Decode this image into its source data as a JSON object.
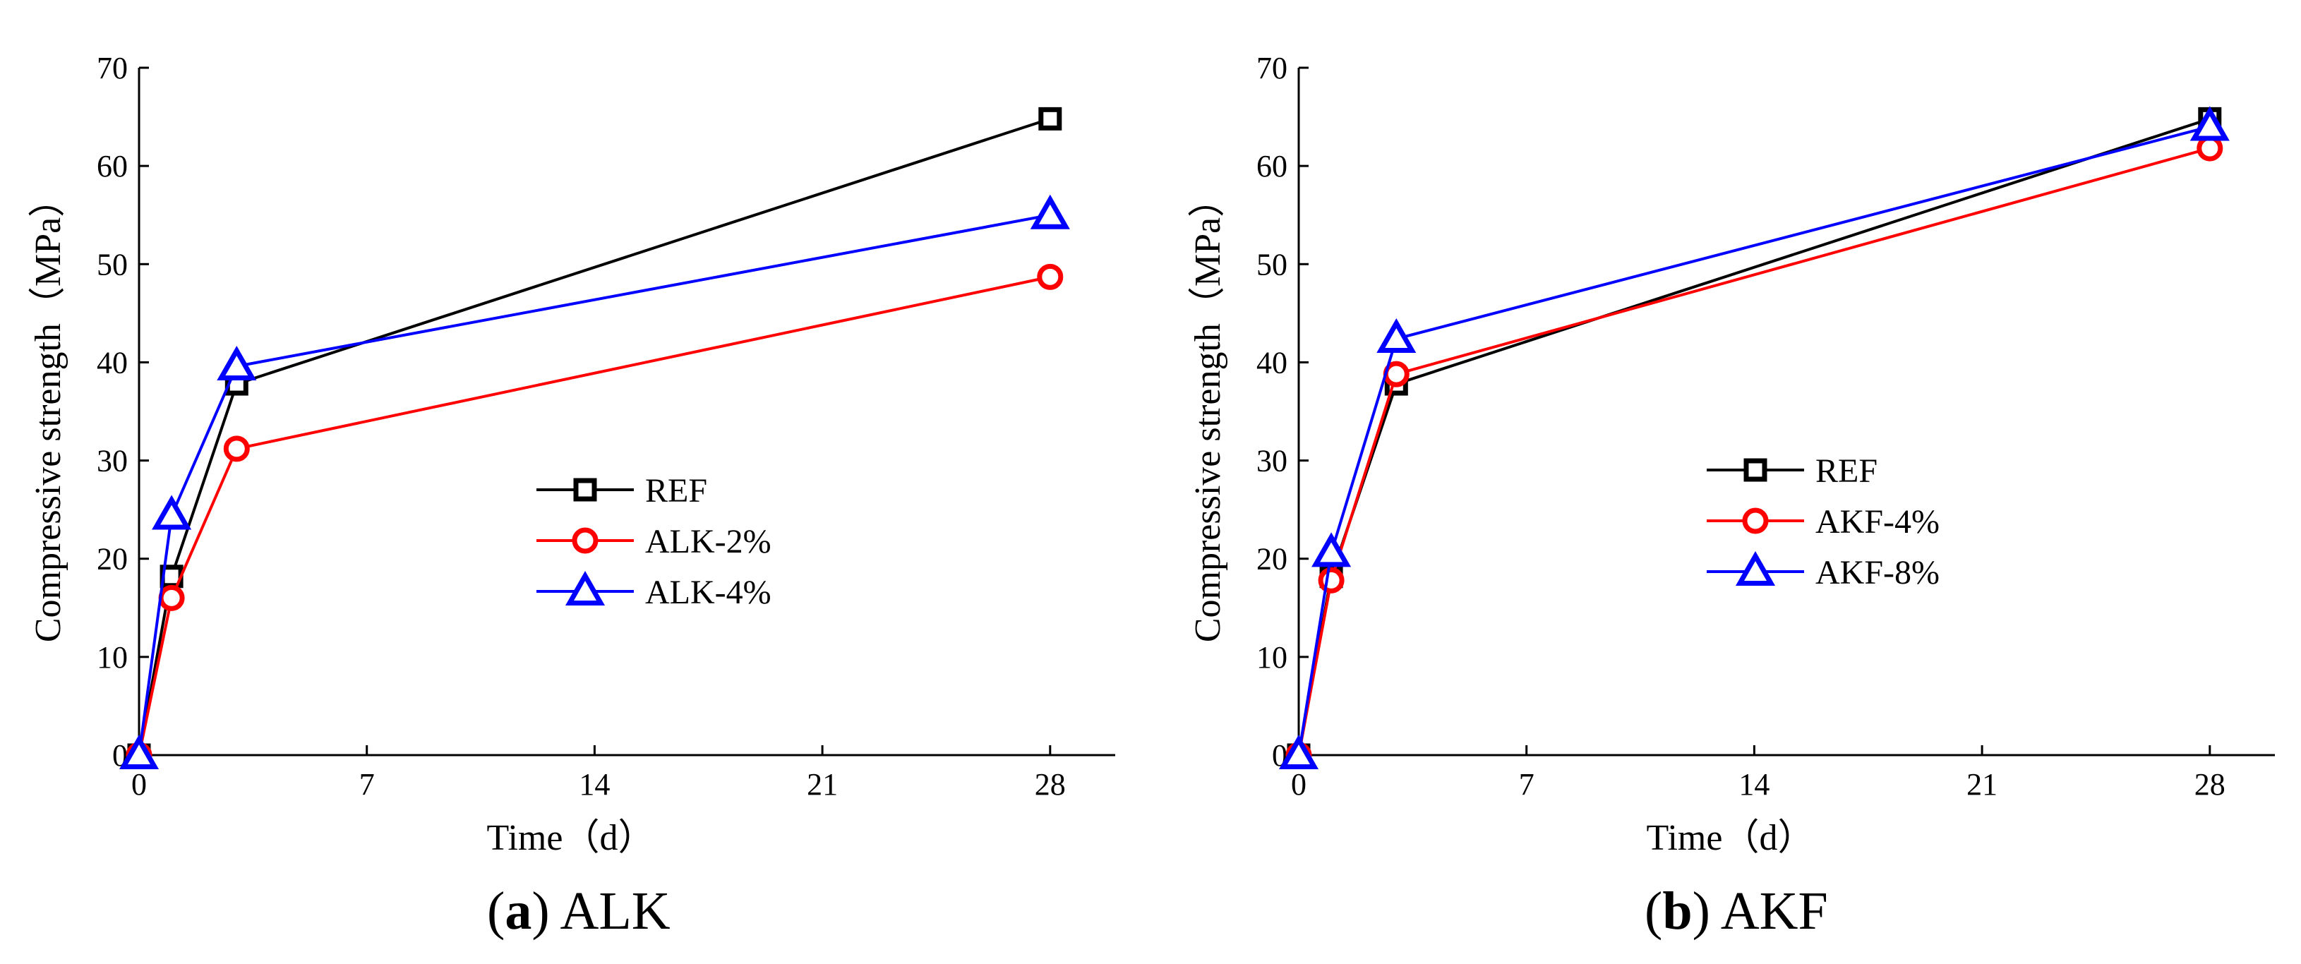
{
  "chart_data": [
    {
      "type": "line",
      "caption_label": "(a)",
      "caption_label_letter": "a",
      "caption_title": "ALK",
      "xlabel": "Time（d）",
      "ylabel": "Compressive strength（MPa）",
      "xlim": [
        0,
        30
      ],
      "ylim": [
        0,
        70
      ],
      "xticks": [
        0,
        7,
        14,
        21,
        28
      ],
      "yticks": [
        0,
        10,
        20,
        30,
        40,
        50,
        60,
        70
      ],
      "legend_position": "center-right",
      "series": [
        {
          "name": "REF",
          "color": "#000000",
          "marker": "square",
          "x": [
            0,
            1,
            3,
            28
          ],
          "values": [
            0,
            18.2,
            37.8,
            64.8
          ]
        },
        {
          "name": "ALK-2%",
          "color": "#ff0000",
          "marker": "circle",
          "x": [
            0,
            1,
            3,
            28
          ],
          "values": [
            0,
            16.0,
            31.2,
            48.7
          ]
        },
        {
          "name": "ALK-4%",
          "color": "#0000ff",
          "marker": "triangle",
          "x": [
            0,
            1,
            3,
            28
          ],
          "values": [
            0,
            24.4,
            39.6,
            55.0
          ]
        }
      ]
    },
    {
      "type": "line",
      "caption_label": "(b)",
      "caption_label_letter": "b",
      "caption_title": "AKF",
      "xlabel": "Time（d）",
      "ylabel": "Compressive strength（MPa）",
      "xlim": [
        0,
        30
      ],
      "ylim": [
        0,
        70
      ],
      "xticks": [
        0,
        7,
        14,
        21,
        28
      ],
      "yticks": [
        0,
        10,
        20,
        30,
        40,
        50,
        60,
        70
      ],
      "legend_position": "center-right",
      "series": [
        {
          "name": "REF",
          "color": "#000000",
          "marker": "square",
          "x": [
            0,
            1,
            3,
            28
          ],
          "values": [
            0,
            18.2,
            37.8,
            64.8
          ]
        },
        {
          "name": "AKF-4%",
          "color": "#ff0000",
          "marker": "circle",
          "x": [
            0,
            1,
            3,
            28
          ],
          "values": [
            0,
            17.8,
            38.8,
            61.8
          ]
        },
        {
          "name": "AKF-8%",
          "color": "#0000ff",
          "marker": "triangle",
          "x": [
            0,
            1,
            3,
            28
          ],
          "values": [
            0,
            20.6,
            42.4,
            64.0
          ]
        }
      ]
    }
  ]
}
